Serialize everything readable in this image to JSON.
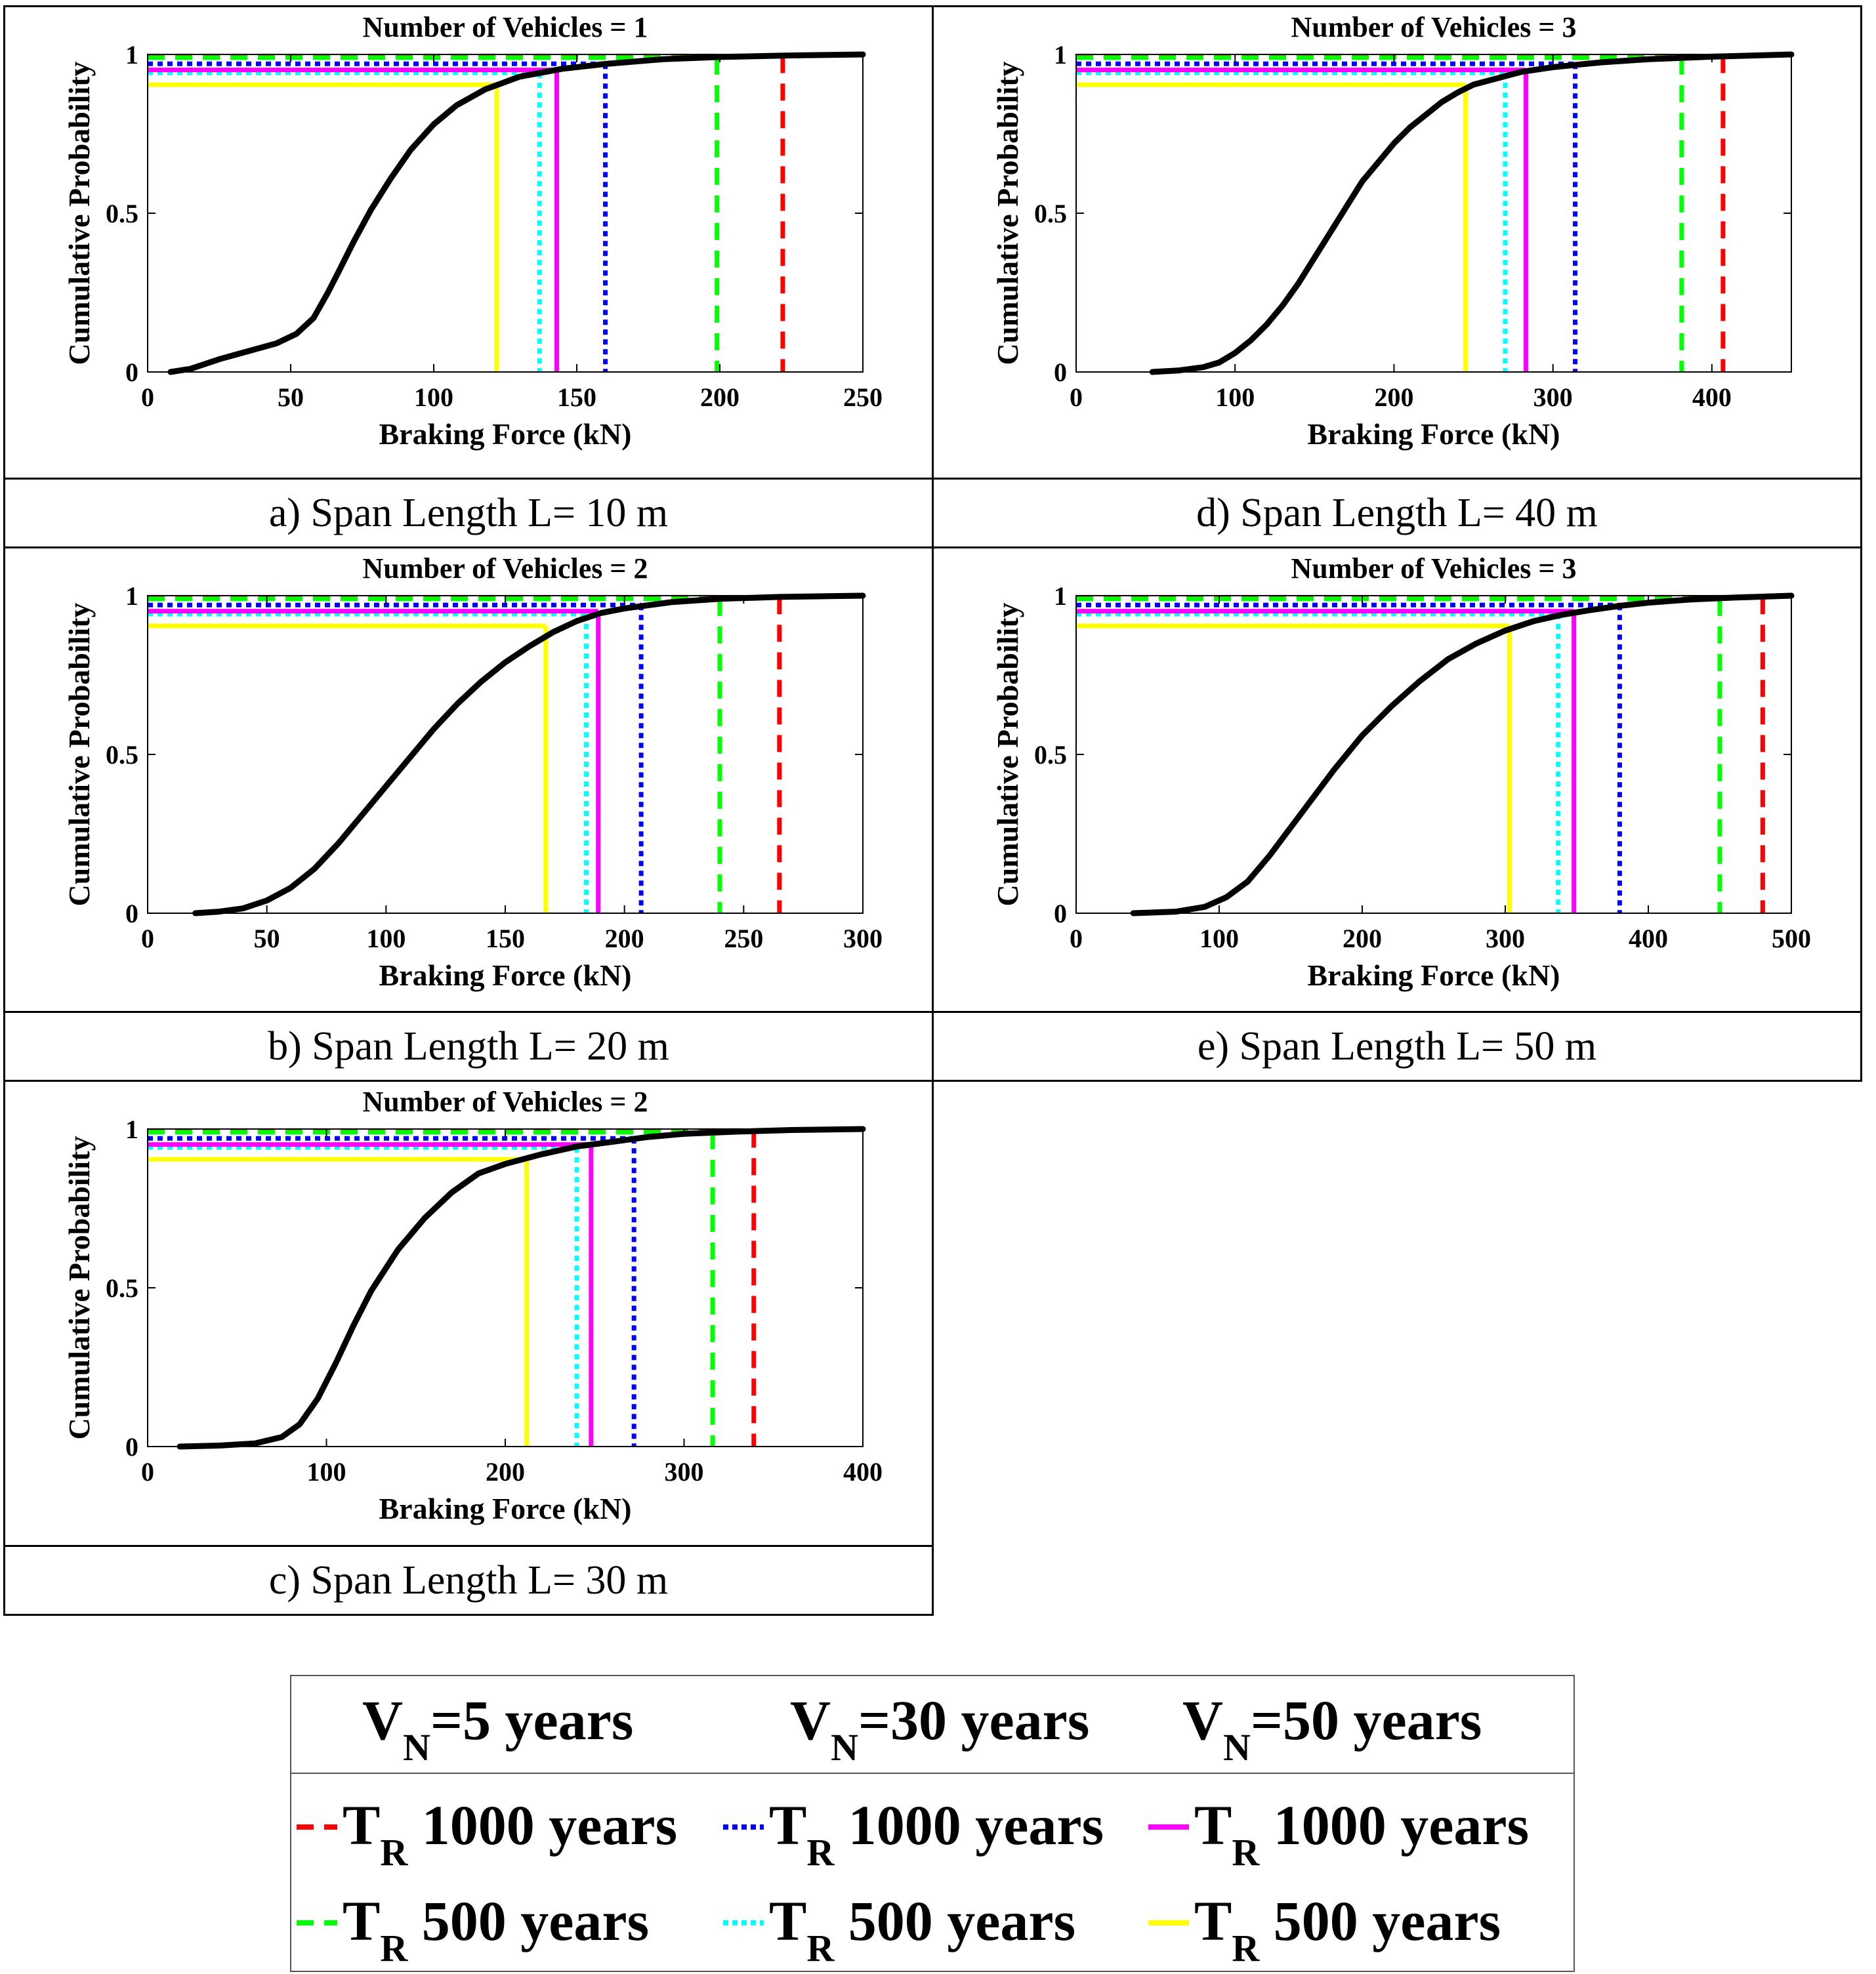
{
  "chart_data": [
    {
      "id": "a",
      "type": "line",
      "title": "Number of Vehicles = 1",
      "caption": "a)   Span Length L= 10 m",
      "xlabel": "Braking Force (kN)",
      "ylabel": "Cumulative Probability",
      "xlim": [
        0,
        250
      ],
      "ylim": [
        0,
        1
      ],
      "xticks": [
        "0",
        "50",
        "100",
        "150",
        "200",
        "250"
      ],
      "yticks": [
        "0",
        "0.5",
        "1"
      ],
      "cdf": [
        [
          8,
          0
        ],
        [
          15,
          0.01
        ],
        [
          25,
          0.04
        ],
        [
          35,
          0.065
        ],
        [
          45,
          0.09
        ],
        [
          52,
          0.12
        ],
        [
          58,
          0.17
        ],
        [
          63,
          0.25
        ],
        [
          67,
          0.32
        ],
        [
          72,
          0.41
        ],
        [
          78,
          0.51
        ],
        [
          85,
          0.61
        ],
        [
          92,
          0.7
        ],
        [
          100,
          0.78
        ],
        [
          108,
          0.84
        ],
        [
          118,
          0.89
        ],
        [
          130,
          0.93
        ],
        [
          145,
          0.955
        ],
        [
          160,
          0.97
        ],
        [
          180,
          0.985
        ],
        [
          200,
          0.992
        ],
        [
          225,
          0.997
        ],
        [
          250,
          1.0
        ]
      ],
      "quantiles": {
        "vn5_tr1000": [
          222,
          0.995
        ],
        "vn5_tr500": [
          199,
          0.99
        ],
        "vn30_tr1000": [
          160,
          0.9705
        ],
        "vn30_tr500": [
          137,
          0.9418
        ],
        "vn50_tr1000": [
          143,
          0.9512
        ],
        "vn50_tr500": [
          122,
          0.9048
        ]
      }
    },
    {
      "id": "b",
      "type": "line",
      "title": "Number of Vehicles = 2",
      "caption": "b) Span Length L= 20 m",
      "xlabel": "Braking Force (kN)",
      "ylabel": "Cumulative Probability",
      "xlim": [
        0,
        300
      ],
      "ylim": [
        0,
        1
      ],
      "xticks": [
        "0",
        "50",
        "100",
        "150",
        "200",
        "250",
        "300"
      ],
      "yticks": [
        "0",
        "0.5",
        "1"
      ],
      "cdf": [
        [
          20,
          0
        ],
        [
          30,
          0.005
        ],
        [
          40,
          0.015
        ],
        [
          50,
          0.04
        ],
        [
          60,
          0.08
        ],
        [
          70,
          0.14
        ],
        [
          80,
          0.22
        ],
        [
          90,
          0.31
        ],
        [
          100,
          0.4
        ],
        [
          110,
          0.49
        ],
        [
          120,
          0.58
        ],
        [
          130,
          0.66
        ],
        [
          140,
          0.73
        ],
        [
          150,
          0.79
        ],
        [
          160,
          0.84
        ],
        [
          170,
          0.885
        ],
        [
          180,
          0.92
        ],
        [
          190,
          0.945
        ],
        [
          200,
          0.96
        ],
        [
          220,
          0.98
        ],
        [
          240,
          0.99
        ],
        [
          265,
          0.996
        ],
        [
          300,
          1.0
        ]
      ],
      "quantiles": {
        "vn5_tr1000": [
          265,
          0.995
        ],
        "vn5_tr500": [
          240,
          0.99
        ],
        "vn30_tr1000": [
          207,
          0.9705
        ],
        "vn30_tr500": [
          184,
          0.9418
        ],
        "vn50_tr1000": [
          189,
          0.9512
        ],
        "vn50_tr500": [
          167,
          0.9048
        ]
      }
    },
    {
      "id": "c",
      "type": "line",
      "title": "Number of Vehicles = 2",
      "caption": "c) Span Length L= 30 m",
      "xlabel": "Braking Force (kN)",
      "ylabel": "Cumulative Probability",
      "xlim": [
        0,
        400
      ],
      "ylim": [
        0,
        1
      ],
      "xticks": [
        "0",
        "100",
        "200",
        "300",
        "400"
      ],
      "yticks": [
        "0",
        "0.5",
        "1"
      ],
      "cdf": [
        [
          18,
          0
        ],
        [
          40,
          0.003
        ],
        [
          60,
          0.01
        ],
        [
          75,
          0.03
        ],
        [
          85,
          0.07
        ],
        [
          95,
          0.15
        ],
        [
          105,
          0.26
        ],
        [
          115,
          0.38
        ],
        [
          125,
          0.49
        ],
        [
          140,
          0.62
        ],
        [
          155,
          0.72
        ],
        [
          170,
          0.8
        ],
        [
          185,
          0.86
        ],
        [
          200,
          0.89
        ],
        [
          220,
          0.92
        ],
        [
          240,
          0.945
        ],
        [
          260,
          0.96
        ],
        [
          280,
          0.975
        ],
        [
          300,
          0.985
        ],
        [
          330,
          0.992
        ],
        [
          360,
          0.997
        ],
        [
          400,
          1.0
        ]
      ],
      "quantiles": {
        "vn5_tr1000": [
          339,
          0.995
        ],
        "vn5_tr500": [
          316,
          0.99
        ],
        "vn30_tr1000": [
          272,
          0.9705
        ],
        "vn30_tr500": [
          240,
          0.9418
        ],
        "vn50_tr1000": [
          248,
          0.9512
        ],
        "vn50_tr500": [
          212,
          0.9048
        ]
      }
    },
    {
      "id": "d",
      "type": "line",
      "title": "Number of Vehicles = 3",
      "caption": "d) Span Length L= 40 m",
      "xlabel": "Braking Force (kN)",
      "ylabel": "Cumulative Probability",
      "xlim": [
        0,
        450
      ],
      "ylim": [
        0,
        1
      ],
      "xticks": [
        "0",
        "100",
        "200",
        "300",
        "400"
      ],
      "yticks": [
        "0",
        "0.5",
        "1"
      ],
      "cdf": [
        [
          48,
          0
        ],
        [
          65,
          0.005
        ],
        [
          80,
          0.015
        ],
        [
          90,
          0.03
        ],
        [
          100,
          0.06
        ],
        [
          110,
          0.1
        ],
        [
          120,
          0.15
        ],
        [
          130,
          0.21
        ],
        [
          140,
          0.28
        ],
        [
          150,
          0.36
        ],
        [
          160,
          0.44
        ],
        [
          170,
          0.52
        ],
        [
          180,
          0.6
        ],
        [
          190,
          0.66
        ],
        [
          200,
          0.72
        ],
        [
          210,
          0.77
        ],
        [
          220,
          0.81
        ],
        [
          230,
          0.85
        ],
        [
          240,
          0.88
        ],
        [
          250,
          0.905
        ],
        [
          265,
          0.925
        ],
        [
          280,
          0.945
        ],
        [
          300,
          0.96
        ],
        [
          330,
          0.975
        ],
        [
          360,
          0.985
        ],
        [
          400,
          0.993
        ],
        [
          450,
          1.0
        ]
      ],
      "quantiles": {
        "vn5_tr1000": [
          407,
          0.995
        ],
        "vn5_tr500": [
          381,
          0.99
        ],
        "vn30_tr1000": [
          314,
          0.9705
        ],
        "vn30_tr500": [
          270,
          0.9418
        ],
        "vn50_tr1000": [
          283,
          0.9512
        ],
        "vn50_tr500": [
          245,
          0.9048
        ]
      }
    },
    {
      "id": "e",
      "type": "line",
      "title": "Number of Vehicles = 3",
      "caption": "e) Span Length L= 50 m",
      "xlabel": "Braking Force (kN)",
      "ylabel": "Cumulative Probability",
      "xlim": [
        0,
        500
      ],
      "ylim": [
        0,
        1
      ],
      "xticks": [
        "0",
        "100",
        "200",
        "300",
        "400",
        "500"
      ],
      "yticks": [
        "0",
        "0.5",
        "1"
      ],
      "cdf": [
        [
          40,
          0
        ],
        [
          70,
          0.005
        ],
        [
          90,
          0.02
        ],
        [
          105,
          0.05
        ],
        [
          120,
          0.1
        ],
        [
          135,
          0.18
        ],
        [
          150,
          0.27
        ],
        [
          165,
          0.36
        ],
        [
          180,
          0.45
        ],
        [
          200,
          0.56
        ],
        [
          220,
          0.65
        ],
        [
          240,
          0.73
        ],
        [
          260,
          0.8
        ],
        [
          280,
          0.85
        ],
        [
          300,
          0.89
        ],
        [
          320,
          0.92
        ],
        [
          340,
          0.94
        ],
        [
          360,
          0.955
        ],
        [
          380,
          0.968
        ],
        [
          400,
          0.978
        ],
        [
          430,
          0.988
        ],
        [
          460,
          0.994
        ],
        [
          500,
          1.0
        ]
      ],
      "quantiles": {
        "vn5_tr1000": [
          480,
          0.995
        ],
        "vn5_tr500": [
          450,
          0.99
        ],
        "vn30_tr1000": [
          380,
          0.9705
        ],
        "vn30_tr500": [
          337,
          0.9418
        ],
        "vn50_tr1000": [
          348,
          0.9512
        ],
        "vn50_tr500": [
          303,
          0.9048
        ]
      }
    }
  ],
  "series_styles": {
    "cdf": {
      "color": "#000000",
      "dash": "none"
    },
    "vn5_tr1000": {
      "color": "#ff0000",
      "dash": "dashed"
    },
    "vn5_tr500": {
      "color": "#00ff00",
      "dash": "dashed"
    },
    "vn30_tr1000": {
      "color": "#0000ff",
      "dash": "dotted"
    },
    "vn30_tr500": {
      "color": "#00ffff",
      "dash": "dotted"
    },
    "vn50_tr1000": {
      "color": "#ff00ff",
      "dash": "solid"
    },
    "vn50_tr500": {
      "color": "#ffff00",
      "dash": "solid"
    }
  },
  "legend": {
    "columns": [
      {
        "head_v": "V",
        "head_sub": "N",
        "head_rest": "=5 years",
        "rows": [
          {
            "key": "vn5_tr1000",
            "t": "T",
            "sub": "R",
            "rest": " 1000 years"
          },
          {
            "key": "vn5_tr500",
            "t": "T",
            "sub": "R",
            "rest": " 500 years"
          }
        ]
      },
      {
        "head_v": "V",
        "head_sub": "N",
        "head_rest": "=30 years",
        "rows": [
          {
            "key": "vn30_tr1000",
            "t": "T",
            "sub": "R",
            "rest": " 1000 years"
          },
          {
            "key": "vn30_tr500",
            "t": "T",
            "sub": "R",
            "rest": " 500 years"
          }
        ]
      },
      {
        "head_v": "V",
        "head_sub": "N",
        "head_rest": "=50 years",
        "rows": [
          {
            "key": "vn50_tr1000",
            "t": "T",
            "sub": "R",
            "rest": " 1000 years"
          },
          {
            "key": "vn50_tr500",
            "t": "T",
            "sub": "R",
            "rest": " 500 years"
          }
        ]
      }
    ]
  }
}
